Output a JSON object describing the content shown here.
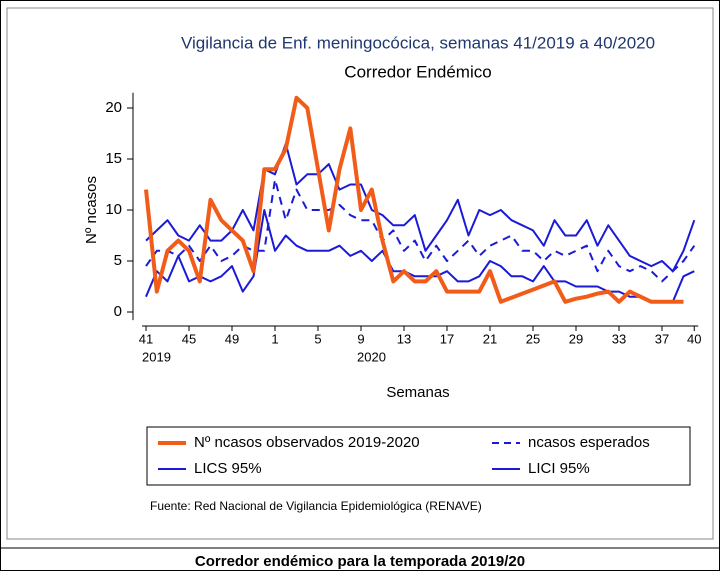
{
  "chart_data": {
    "type": "line",
    "title": "Vigilancia de Enf. meningocócica, semanas 41/2019 a 40/2020",
    "subtitle": "Corredor Endémico",
    "y_label": "Nº ncasos",
    "x_label": "Semanas",
    "source": "Fuente: Red Nacional de Vigilancia Epidemiológica (RENAVE)",
    "caption": "Corredor endémico para la temporada 2019/20",
    "categories": [
      "41",
      null,
      null,
      null,
      "45",
      null,
      null,
      null,
      "49",
      null,
      null,
      null,
      "1",
      null,
      null,
      null,
      "5",
      null,
      null,
      null,
      "9",
      null,
      null,
      null,
      "13",
      null,
      null,
      null,
      "17",
      null,
      null,
      null,
      "21",
      null,
      null,
      null,
      "25",
      null,
      null,
      null,
      "29",
      null,
      null,
      null,
      "33",
      null,
      null,
      null,
      "37",
      null,
      null,
      "40"
    ],
    "category_sublabels": [
      "2019",
      null,
      null,
      null,
      null,
      null,
      null,
      null,
      null,
      null,
      null,
      null,
      null,
      null,
      null,
      null,
      null,
      null,
      null,
      null,
      "2020",
      null,
      null,
      null,
      null,
      null,
      null,
      null,
      null,
      null,
      null,
      null,
      null,
      null,
      null,
      null,
      null,
      null,
      null,
      null,
      null,
      null,
      null,
      null,
      null,
      null,
      null,
      null,
      null,
      null,
      null,
      null
    ],
    "ylim": [
      -0.8,
      21.5
    ],
    "yticks": [
      0,
      5,
      10,
      15,
      20
    ],
    "series": [
      {
        "name": "Nº ncasos observados 2019-2020",
        "color": "#f25c19",
        "width": 4,
        "dashed": false,
        "values": [
          12,
          2,
          6,
          7,
          6,
          3,
          11,
          9,
          8,
          7,
          4,
          14,
          14,
          16,
          21,
          20,
          14,
          8,
          14,
          18,
          10,
          12,
          7,
          3,
          4,
          3,
          3,
          4,
          2,
          2,
          2,
          2,
          4,
          1,
          1.4,
          1.8,
          2.2,
          2.6,
          3,
          1,
          1.3,
          1.5,
          1.8,
          2,
          1,
          2,
          1.5,
          1,
          1,
          1,
          1,
          null
        ]
      },
      {
        "name": "ncasos esperados",
        "color": "#1a1ad8",
        "width": 2,
        "dashed": true,
        "values": [
          4.5,
          6,
          6,
          5.5,
          6.5,
          5,
          6.5,
          5,
          5.5,
          6.5,
          6,
          6,
          13,
          9,
          12,
          10,
          10,
          10,
          10.5,
          9.5,
          9,
          9,
          7,
          8,
          6,
          7,
          5,
          6.5,
          5,
          6,
          7,
          5.5,
          6.5,
          7,
          7.5,
          6,
          6,
          5,
          6,
          5.5,
          6,
          6.5,
          4,
          6,
          4.5,
          4,
          4.5,
          4,
          3,
          4,
          5,
          6.5
        ]
      },
      {
        "name": "LICS 95%",
        "color": "#1a1ad8",
        "width": 2,
        "dashed": false,
        "values": [
          7,
          8,
          9,
          7.5,
          7,
          8.5,
          7,
          7,
          8,
          10,
          8,
          14,
          13.5,
          16.5,
          12.5,
          13.5,
          13.5,
          14.5,
          12,
          12.5,
          12.5,
          10,
          9.5,
          8.5,
          8.5,
          9.5,
          6,
          7.5,
          9,
          11,
          7.5,
          10,
          9.5,
          10,
          9,
          8.5,
          8,
          6.5,
          9,
          7.5,
          7.5,
          9,
          6.5,
          8.5,
          7,
          5.5,
          5,
          4.5,
          5,
          4,
          6,
          9
        ]
      },
      {
        "name": "LICI 95%",
        "color": "#1a1ad8",
        "width": 2,
        "dashed": false,
        "values": [
          1.5,
          4,
          3,
          5.5,
          3,
          3.5,
          3,
          3.5,
          4.5,
          2,
          3.5,
          10,
          6,
          7.5,
          6.5,
          6,
          6,
          6,
          6.5,
          5.5,
          6,
          5,
          6,
          4,
          4,
          3.5,
          3.5,
          3.5,
          4,
          3,
          3,
          3.5,
          5,
          4.5,
          3.5,
          3.5,
          3,
          4.5,
          3,
          3,
          2.5,
          2.5,
          2.5,
          2,
          2,
          1.5,
          1.5,
          1,
          1,
          1,
          3.5,
          4
        ]
      }
    ]
  }
}
